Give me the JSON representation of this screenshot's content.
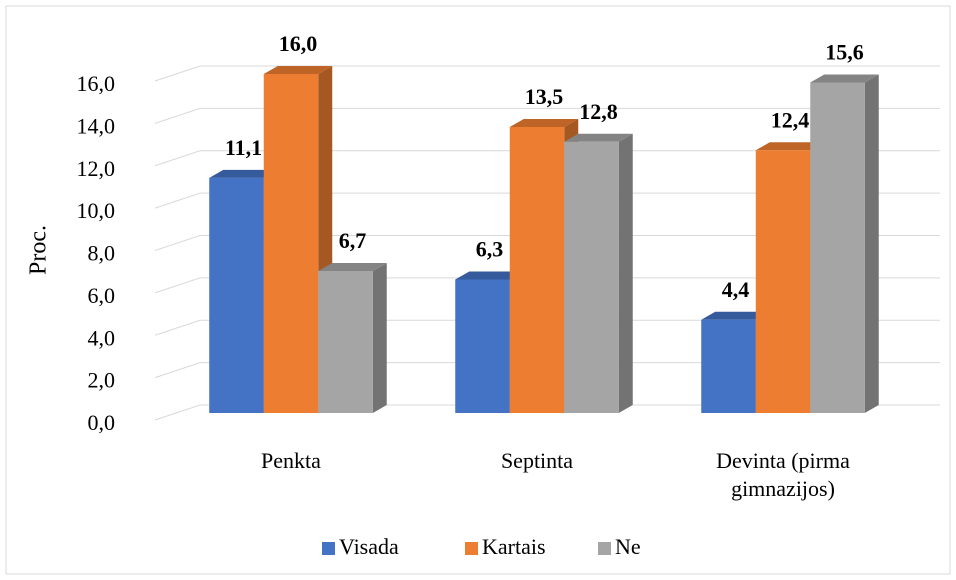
{
  "chart_data": {
    "type": "bar3d",
    "y_label": "Proc.",
    "categories": [
      "Penkta",
      "Septinta",
      "Devinta (pirma gimnazijos)"
    ],
    "series": [
      {
        "name": "Visada",
        "color": "#4472c4",
        "values": [
          11.1,
          6.3,
          4.4
        ],
        "value_labels": [
          "11,1",
          "6,3",
          "4,4"
        ]
      },
      {
        "name": "Kartais",
        "color": "#ed7d31",
        "values": [
          16.0,
          13.5,
          12.4
        ],
        "value_labels": [
          "16,0",
          "13,5",
          "12,4"
        ]
      },
      {
        "name": "Ne",
        "color": "#a5a5a5",
        "values": [
          6.7,
          12.8,
          15.6
        ],
        "value_labels": [
          "6,7",
          "12,8",
          "15,6"
        ]
      }
    ],
    "ylim": [
      0,
      16
    ],
    "yticks": [
      {
        "value": 0,
        "label": "0,0"
      },
      {
        "value": 2,
        "label": "2,0"
      },
      {
        "value": 4,
        "label": "4,0"
      },
      {
        "value": 6,
        "label": "6,0"
      },
      {
        "value": 8,
        "label": "8,0"
      },
      {
        "value": 10,
        "label": "10,0"
      },
      {
        "value": 12,
        "label": "12,0"
      },
      {
        "value": 14,
        "label": "14,0"
      },
      {
        "value": 16,
        "label": "16,0"
      }
    ],
    "grid": true,
    "legend": "bottom"
  }
}
